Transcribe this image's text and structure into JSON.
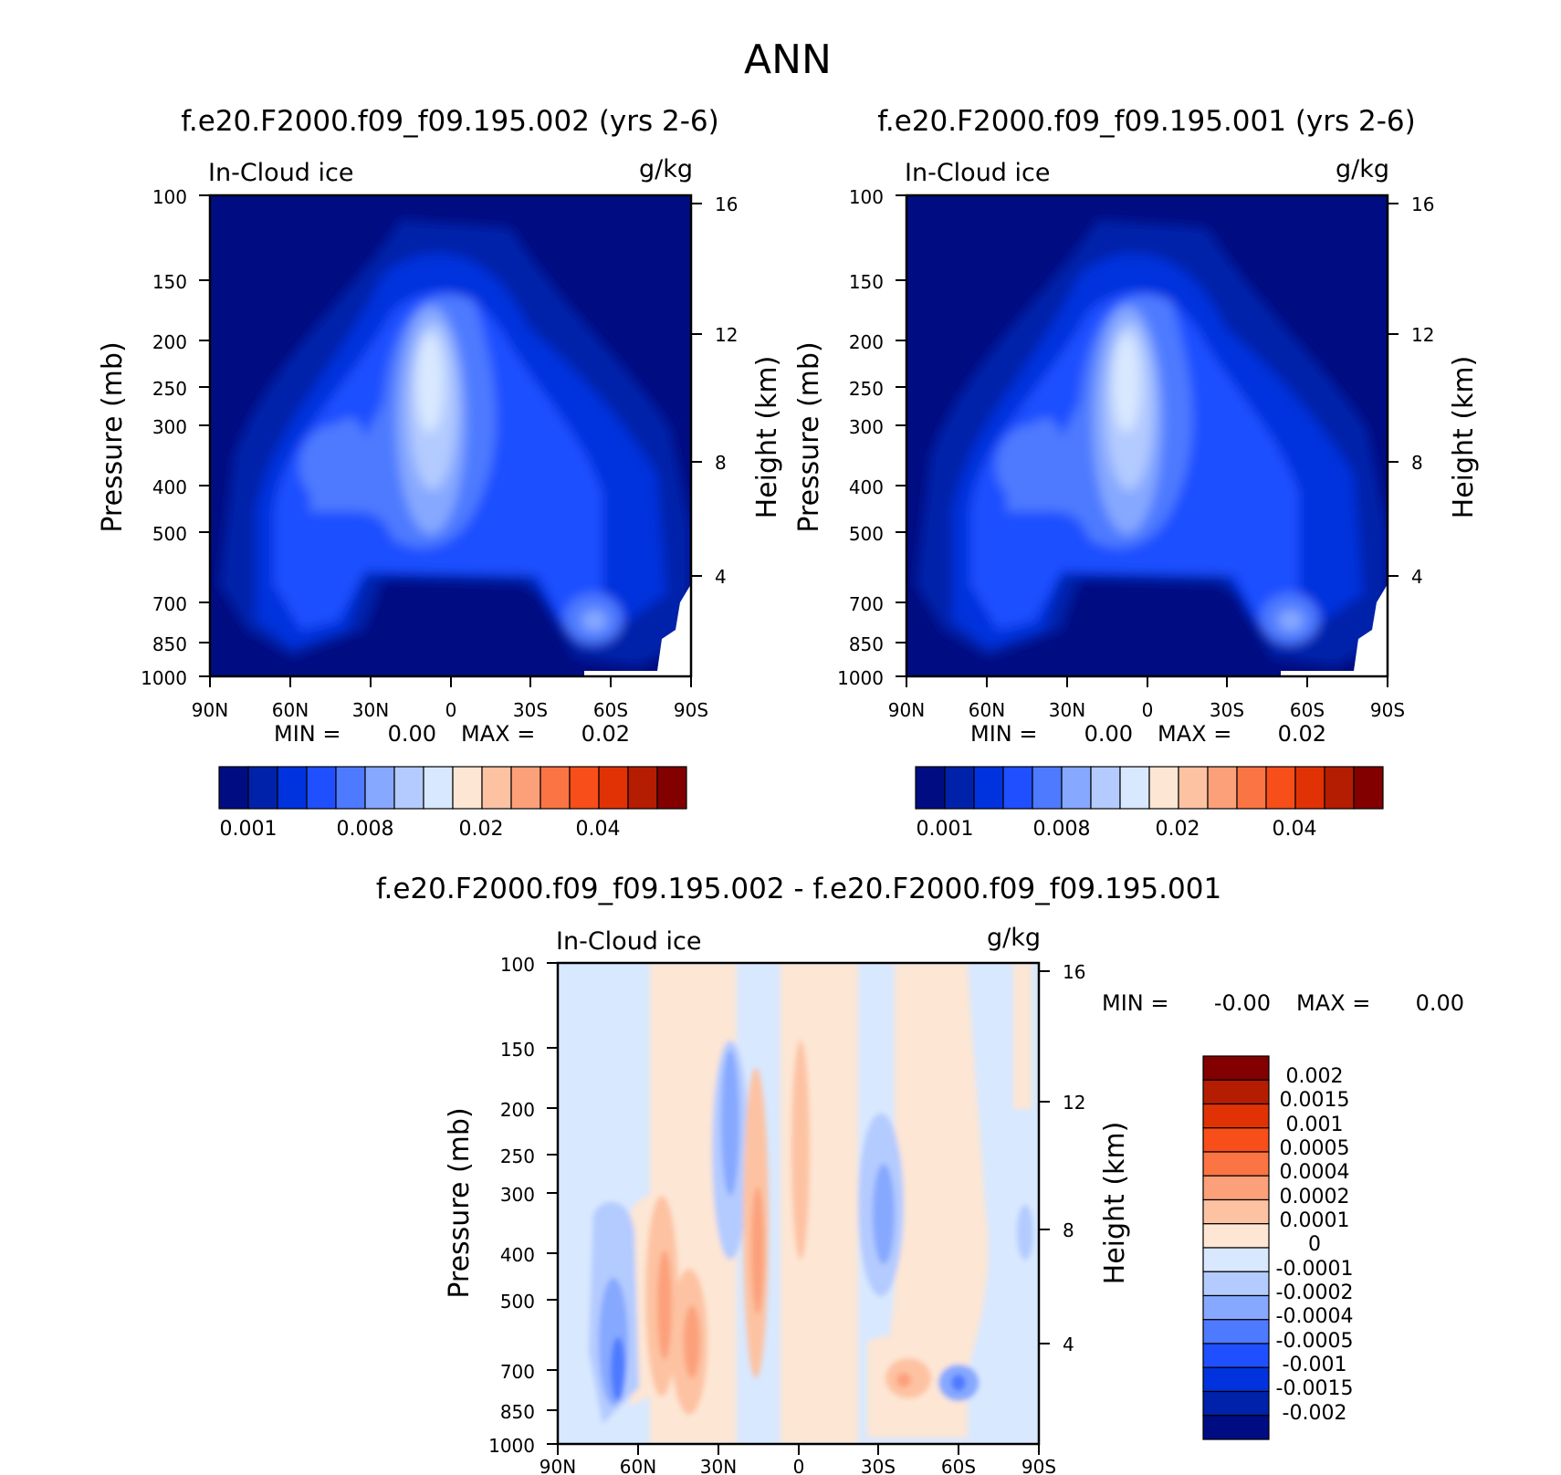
{
  "figure_title": "ANN",
  "panels": {
    "left": {
      "title": "f.e20.F2000.f09_f09.195.002 (yrs 2-6)",
      "field": "In-Cloud ice",
      "units": "g/kg",
      "min_label": "MIN =",
      "min_value": "0.00",
      "max_label": "MAX =",
      "max_value": "0.02"
    },
    "right": {
      "title": "f.e20.F2000.f09_f09.195.001 (yrs 2-6)",
      "field": "In-Cloud ice",
      "units": "g/kg",
      "min_label": "MIN =",
      "min_value": "0.00",
      "max_label": "MAX =",
      "max_value": "0.02"
    },
    "diff": {
      "title": "f.e20.F2000.f09_f09.195.002 - f.e20.F2000.f09_f09.195.001",
      "field": "In-Cloud ice",
      "units": "g/kg",
      "min_label": "MIN =",
      "min_value": "-0.00",
      "max_label": "MAX =",
      "max_value": "0.00"
    }
  },
  "axes": {
    "ylabel": "Pressure (mb)",
    "ylabel2": "Height (km)",
    "pressure_ticks": [
      "100",
      "150",
      "200",
      "250",
      "300",
      "400",
      "500",
      "700",
      "850",
      "1000"
    ],
    "height_ticks": [
      "16",
      "12",
      "8",
      "4"
    ],
    "lat_ticks": [
      "90N",
      "60N",
      "30N",
      "0",
      "30S",
      "60S",
      "90S"
    ]
  },
  "colorbar_abs": {
    "colors": [
      "#000d82",
      "#0022aa",
      "#0033dd",
      "#1f4fff",
      "#4d7aff",
      "#86a8ff",
      "#b4cbff",
      "#d8e8ff",
      "#fde6d4",
      "#fdc2a2",
      "#fca07a",
      "#fb7443",
      "#f84e1a",
      "#e03205",
      "#b41d01",
      "#820000"
    ],
    "labels": [
      "0.001",
      "0.008",
      "0.02",
      "0.04"
    ]
  },
  "colorbar_diff": {
    "colors": [
      "#820000",
      "#b41d01",
      "#e03205",
      "#f84e1a",
      "#fb7443",
      "#fca07a",
      "#fdc2a2",
      "#fde6d4",
      "#d8e8ff",
      "#b4cbff",
      "#86a8ff",
      "#4d7aff",
      "#1f4fff",
      "#0033dd",
      "#0022aa",
      "#000d82"
    ],
    "labels": [
      "0.002",
      "0.0015",
      "0.001",
      "0.0005",
      "0.0004",
      "0.0002",
      "0.0001",
      "0",
      "-0.0001",
      "-0.0002",
      "-0.0004",
      "-0.0005",
      "-0.001",
      "-0.0015",
      "-0.002"
    ]
  },
  "chart_data": [
    {
      "type": "heatmap",
      "title": "f.e20.F2000.f09_f09.195.002 (yrs 2-6)",
      "field": "In-Cloud ice",
      "units": "g/kg",
      "xlabel": "",
      "ylabel": "Pressure (mb)",
      "ylabel2": "Height (km)",
      "x_range": [
        "90N",
        "90S"
      ],
      "ylim": [
        1000,
        100
      ],
      "y_scale": "log",
      "min": 0.0,
      "max": 0.02,
      "contour_levels": [
        0.001,
        0.002,
        0.003,
        0.005,
        0.007,
        0.008,
        0.01,
        0.015,
        0.02,
        0.025,
        0.03,
        0.035,
        0.04,
        0.045,
        0.05
      ]
    },
    {
      "type": "heatmap",
      "title": "f.e20.F2000.f09_f09.195.001 (yrs 2-6)",
      "field": "In-Cloud ice",
      "units": "g/kg",
      "xlabel": "",
      "ylabel": "Pressure (mb)",
      "ylabel2": "Height (km)",
      "x_range": [
        "90N",
        "90S"
      ],
      "ylim": [
        1000,
        100
      ],
      "y_scale": "log",
      "min": 0.0,
      "max": 0.02,
      "contour_levels": [
        0.001,
        0.002,
        0.003,
        0.005,
        0.007,
        0.008,
        0.01,
        0.015,
        0.02,
        0.025,
        0.03,
        0.035,
        0.04,
        0.045,
        0.05
      ]
    },
    {
      "type": "heatmap",
      "title": "f.e20.F2000.f09_f09.195.002 - f.e20.F2000.f09_f09.195.001",
      "field": "In-Cloud ice",
      "units": "g/kg",
      "xlabel": "",
      "ylabel": "Pressure (mb)",
      "ylabel2": "Height (km)",
      "x_range": [
        "90N",
        "90S"
      ],
      "ylim": [
        1000,
        100
      ],
      "y_scale": "log",
      "min": -0.0,
      "max": 0.0,
      "contour_levels": [
        -0.002,
        -0.0015,
        -0.001,
        -0.0005,
        -0.0004,
        -0.0002,
        -0.0001,
        0,
        0.0001,
        0.0002,
        0.0004,
        0.0005,
        0.001,
        0.0015,
        0.002
      ]
    }
  ]
}
